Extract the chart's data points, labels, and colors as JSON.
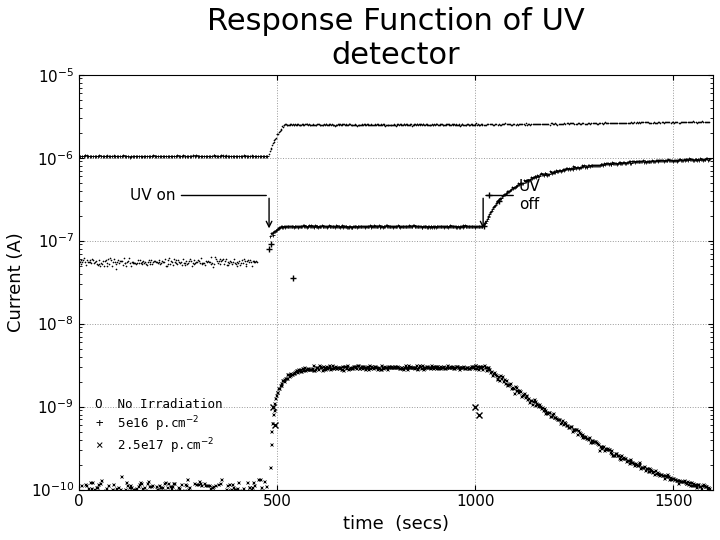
{
  "title": "Response Function of UV\ndetector",
  "xlabel": "time  (secs)",
  "ylabel": "Current (A)",
  "xlim": [
    0,
    1600
  ],
  "title_fontsize": 22,
  "axis_label_fontsize": 13,
  "background_color": "#ffffff",
  "grid_color": "#999999",
  "uv_on_time": 480,
  "uv_off_time": 1020,
  "legend_text": "O  No Irradiation\n+  5e16 p.cm$^{-2}$\nx  2.5e17 p.cm$^{-2}$"
}
